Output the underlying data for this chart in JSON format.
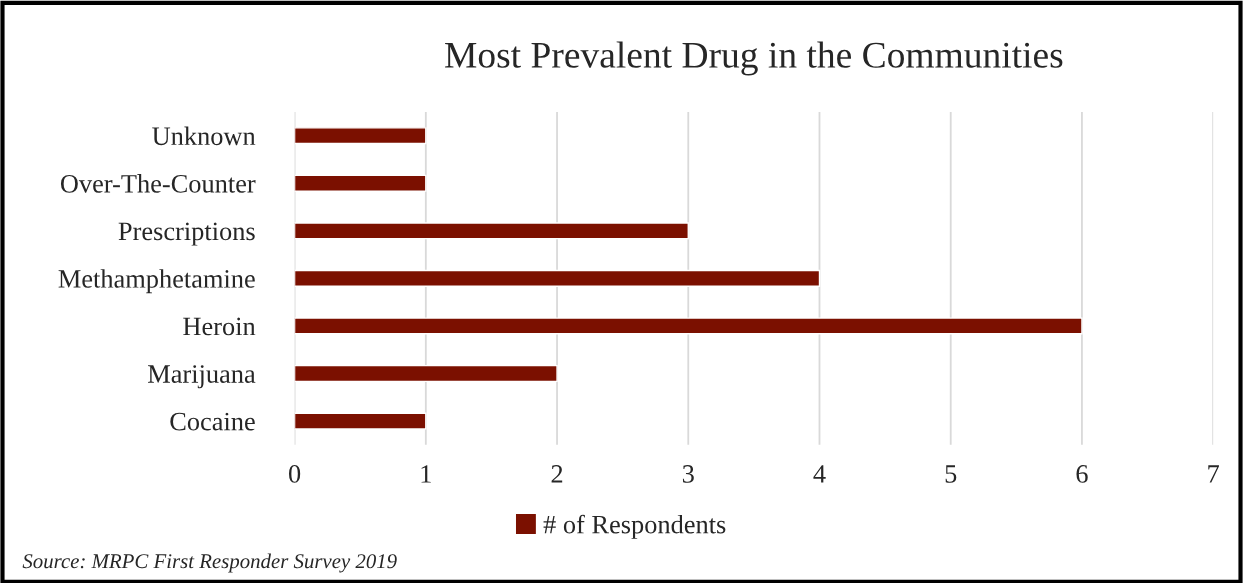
{
  "chart_data": {
    "type": "bar",
    "orientation": "horizontal",
    "title": "Most Prevalent Drug in the Communities",
    "categories": [
      "Unknown",
      "Over-The-Counter",
      "Prescriptions",
      "Methamphetamine",
      "Heroin",
      "Marijuana",
      "Cocaine"
    ],
    "series": [
      {
        "name": "# of Respondents",
        "color": "#7b1000",
        "values": [
          1,
          1,
          3,
          4,
          6,
          2,
          1
        ]
      }
    ],
    "xlim": [
      0,
      7
    ],
    "xticks": [
      0,
      1,
      2,
      3,
      4,
      5,
      6,
      7
    ],
    "grid": "x",
    "legend": "bottom",
    "annotations": [
      "Source: MRPC First Responder Survey 2019"
    ]
  }
}
